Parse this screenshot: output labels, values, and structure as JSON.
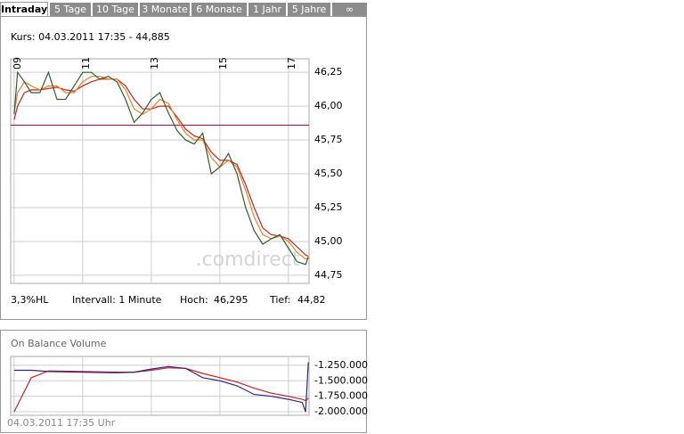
{
  "tabs": [
    "Intraday",
    "5 Tage",
    "10 Tage",
    "3 Monate",
    "6 Monate",
    "1 Jahr",
    "5 Jahre",
    "∞"
  ],
  "quote": "Kurs: 04.03.2011 17:35 - 44,885",
  "info": {
    "range": "3,3%HL",
    "interval": "Intervall: 1 Minute",
    "high_label": "Hoch:",
    "high": "46,295",
    "low_label": "Tief:",
    "low": "44,82"
  },
  "watermark": ".comdirect",
  "chart_data": [
    {
      "type": "line",
      "x": [
        9,
        9.1,
        9.3,
        9.5,
        9.75,
        10,
        10.25,
        10.5,
        10.75,
        11,
        11.25,
        11.5,
        11.75,
        12,
        12.25,
        12.5,
        12.75,
        13,
        13.25,
        13.5,
        13.75,
        14,
        14.25,
        14.5,
        14.75,
        15,
        15.25,
        15.5,
        15.75,
        16,
        16.25,
        16.5,
        16.75,
        17,
        17.25,
        17.5,
        17.58
      ],
      "series": [
        {
          "color": "#2f5f2f",
          "values": [
            45.94,
            46.25,
            46.18,
            46.1,
            46.1,
            46.25,
            46.05,
            46.05,
            46.15,
            46.25,
            46.25,
            46.2,
            46.22,
            46.18,
            46.05,
            45.88,
            45.95,
            46.05,
            46.1,
            45.95,
            45.82,
            45.75,
            45.72,
            45.8,
            45.5,
            45.55,
            45.65,
            45.5,
            45.25,
            45.08,
            44.98,
            45.02,
            45.05,
            44.95,
            44.85,
            44.83,
            44.885
          ]
        },
        {
          "color": "#f08020",
          "values": [
            45.95,
            46.1,
            46.18,
            46.15,
            46.12,
            46.15,
            46.15,
            46.1,
            46.1,
            46.18,
            46.22,
            46.22,
            46.2,
            46.2,
            46.12,
            45.98,
            45.94,
            45.98,
            46.05,
            46.02,
            45.9,
            45.8,
            45.75,
            45.75,
            45.62,
            45.55,
            45.6,
            45.55,
            45.38,
            45.18,
            45.05,
            45.02,
            45.04,
            45.0,
            44.92,
            44.87,
            44.88
          ]
        },
        {
          "color": "#cc2222",
          "values": [
            45.9,
            46.0,
            46.1,
            46.12,
            46.12,
            46.13,
            46.14,
            46.12,
            46.11,
            46.15,
            46.18,
            46.2,
            46.2,
            46.2,
            46.15,
            46.05,
            45.98,
            45.98,
            46.0,
            46.0,
            45.92,
            45.83,
            45.78,
            45.76,
            45.66,
            45.6,
            45.6,
            45.57,
            45.42,
            45.25,
            45.1,
            45.05,
            45.04,
            45.02,
            44.96,
            44.9,
            44.89
          ]
        }
      ],
      "reference_line": 45.86,
      "reference_color": "#990033",
      "xlim": [
        8.9,
        17.6
      ],
      "xticks": [
        {
          "value": 9,
          "label": "09"
        },
        11,
        13,
        15,
        17
      ],
      "ylim": [
        44.69,
        46.35
      ],
      "yticks": [
        {
          "value": 46.25,
          "label": "46,25"
        },
        {
          "value": 46.0,
          "label": "46,00"
        },
        {
          "value": 45.75,
          "label": "45,75"
        },
        {
          "value": 45.5,
          "label": "45,50"
        },
        {
          "value": 45.25,
          "label": "45,25"
        },
        {
          "value": 45.0,
          "label": "45,00"
        },
        {
          "value": 44.75,
          "label": "44,75"
        }
      ],
      "grid": true
    },
    {
      "type": "line",
      "title": "On Balance Volume",
      "footer": "04.03.2011 17:35 Uhr",
      "x": [
        9,
        9.5,
        10,
        11,
        12,
        12.5,
        13,
        13.5,
        14,
        14.5,
        15,
        15.5,
        16,
        16.5,
        17,
        17.4,
        17.5,
        17.58
      ],
      "series": [
        {
          "color": "#332288",
          "values": [
            -1330000,
            -1330000,
            -1350000,
            -1360000,
            -1370000,
            -1360000,
            -1310000,
            -1270000,
            -1300000,
            -1450000,
            -1500000,
            -1580000,
            -1720000,
            -1750000,
            -1800000,
            -1850000,
            -2000000,
            -1200000
          ]
        },
        {
          "color": "#cc2222",
          "values": [
            -2000000,
            -1450000,
            -1340000,
            -1350000,
            -1360000,
            -1360000,
            -1330000,
            -1290000,
            -1300000,
            -1380000,
            -1450000,
            -1520000,
            -1620000,
            -1700000,
            -1750000,
            -1800000,
            -1820000,
            -1780000
          ]
        }
      ],
      "xlim": [
        8.9,
        17.6
      ],
      "xticks": [
        9,
        11,
        13,
        15,
        17
      ],
      "ylim": [
        -2057000,
        -1107000
      ],
      "yticks": [
        {
          "value": -1250000,
          "label": "-1.250.000"
        },
        {
          "value": -1500000,
          "label": "-1.500.000"
        },
        {
          "value": -1750000,
          "label": "-1.750.000"
        },
        {
          "value": -2000000,
          "label": "-2.000.000"
        }
      ],
      "grid": true
    }
  ]
}
